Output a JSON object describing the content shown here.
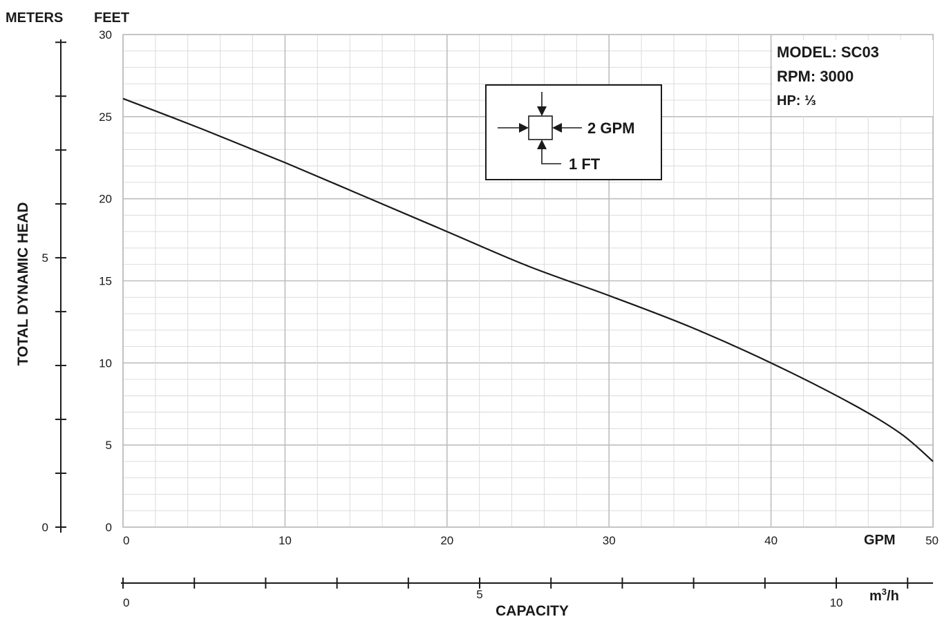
{
  "chart_data": {
    "type": "line",
    "title": "",
    "model_info": [
      "MODEL: SC03",
      "RPM: 3000",
      "HP: ⅓"
    ],
    "inset": {
      "label_gpm": "2 GPM",
      "label_ft": "1 FT"
    },
    "xlabel": "CAPACITY",
    "ylabel": "TOTAL DYNAMIC HEAD",
    "unit_meters": "METERS",
    "unit_feet": "FEET",
    "unit_gpm": "GPM",
    "unit_m3h": "m",
    "unit_m3h_sup": "3",
    "unit_m3h_tail": "/h",
    "xlim": [
      0,
      50
    ],
    "ylim": [
      0,
      30
    ],
    "x_ticks": [
      "0",
      "10",
      "20",
      "30",
      "40",
      "50"
    ],
    "y_ticks": [
      "0",
      "5",
      "10",
      "15",
      "20",
      "25",
      "30"
    ],
    "meters_ticks": [
      "0",
      "5"
    ],
    "m3h_ticks": [
      "0",
      "5",
      "10"
    ],
    "series": [
      {
        "x": [
          0,
          5,
          10,
          15,
          20,
          25,
          30,
          35,
          40,
          45,
          48,
          50
        ],
        "y": [
          26.1,
          24.2,
          22.2,
          20.1,
          18.0,
          15.9,
          14.1,
          12.2,
          10.0,
          7.5,
          5.7,
          4.0
        ]
      }
    ],
    "grid": true,
    "colors": {
      "line": "#1a1a1a",
      "grid_major": "#bdbdbd",
      "grid_minor": "#d8d8d8"
    }
  }
}
